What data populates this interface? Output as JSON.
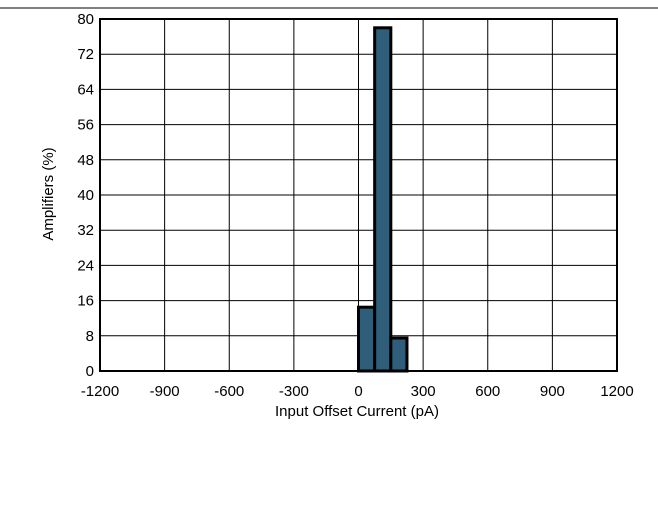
{
  "chart_data": {
    "type": "bar",
    "title": "",
    "xlabel": "Input Offset Current (pA)",
    "ylabel": "Amplifiers (%)",
    "xlim": [
      -1200,
      1200
    ],
    "ylim": [
      0,
      80
    ],
    "x_ticks": [
      -1200,
      -900,
      -600,
      -300,
      0,
      300,
      600,
      900,
      1200
    ],
    "y_ticks": [
      0,
      8,
      16,
      24,
      32,
      40,
      48,
      56,
      64,
      72,
      80
    ],
    "grid": true,
    "bin_width": 75,
    "bins": [
      {
        "start": 0,
        "end": 75,
        "value": 14.5
      },
      {
        "start": 75,
        "end": 150,
        "value": 78
      },
      {
        "start": 150,
        "end": 225,
        "value": 7.5
      }
    ],
    "colors": {
      "bar_fill": "#2e5e7a",
      "bar_stroke": "#000000",
      "grid": "#000000",
      "frame": "#000000"
    }
  }
}
